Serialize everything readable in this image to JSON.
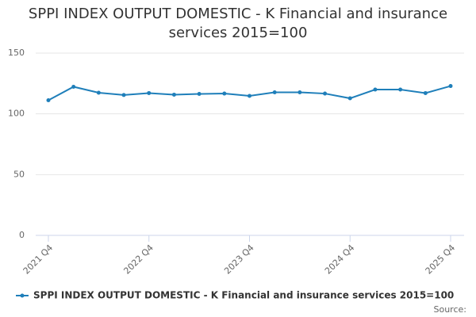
{
  "chart_data": {
    "type": "line",
    "title": "SPPI INDEX OUTPUT DOMESTIC - K Financial and insurance services 2015=100",
    "categories": [
      "2021 Q4",
      null,
      null,
      null,
      "2022 Q4",
      null,
      null,
      null,
      "2023 Q4",
      null,
      null,
      null,
      "2024 Q4",
      null,
      null,
      null,
      "2025 Q4"
    ],
    "series": [
      {
        "name": "SPPI INDEX OUTPUT DOMESTIC - K Financial and insurance services 2015=100",
        "color": "#1f7fba",
        "values": [
          111.2,
          122.3,
          117.4,
          115.5,
          117.1,
          115.8,
          116.4,
          116.7,
          114.8,
          117.7,
          117.7,
          116.7,
          112.8,
          120,
          120,
          117.1,
          122.9
        ]
      }
    ],
    "ylim": [
      0,
      150
    ],
    "yticks": [
      0,
      50,
      100,
      150
    ],
    "grid": true,
    "legend": "bottom",
    "source": "Source:"
  }
}
